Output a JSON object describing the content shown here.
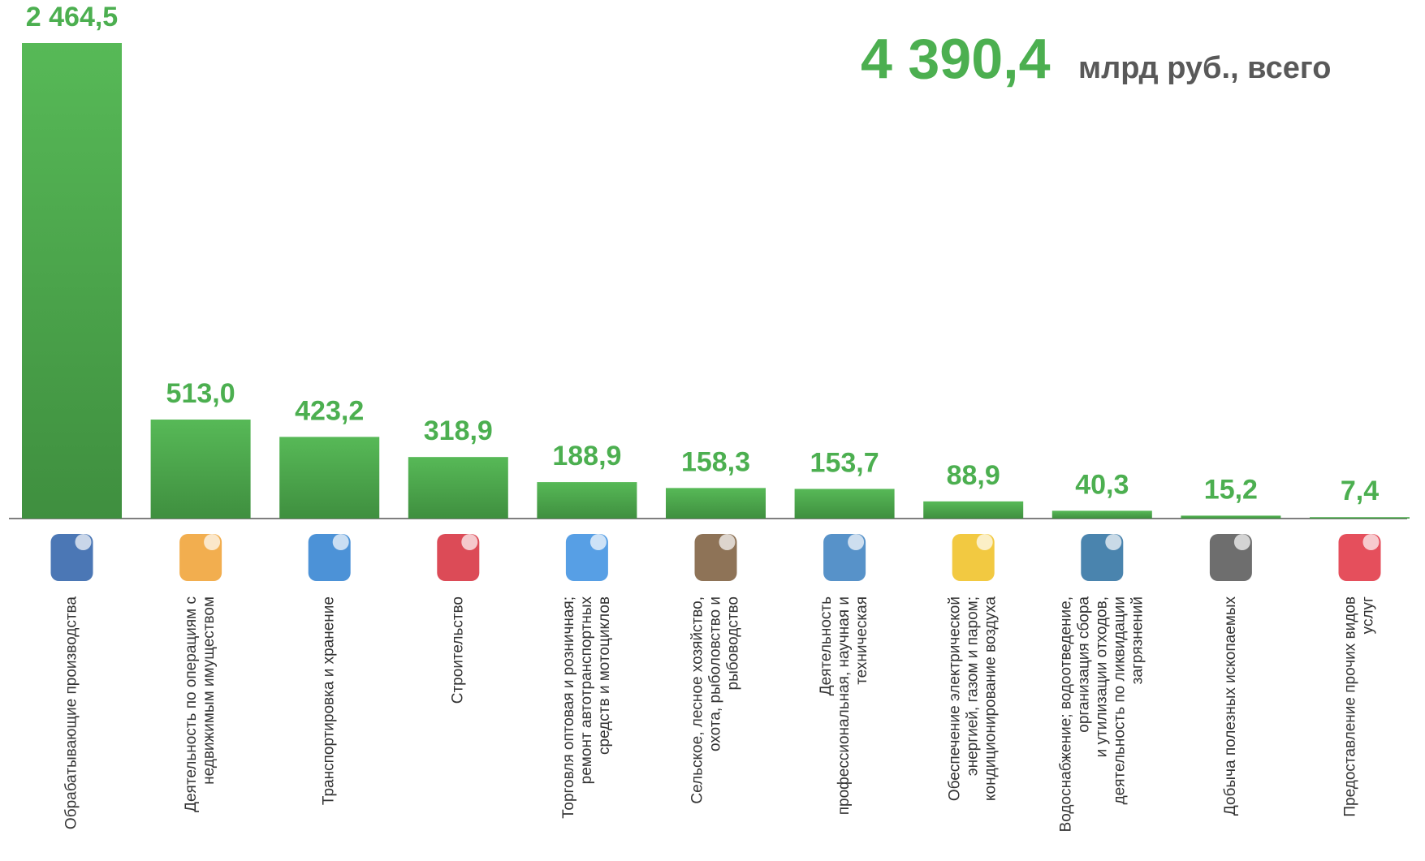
{
  "chart_data": {
    "type": "bar",
    "total": "4 390,4",
    "total_unit": "млрд руб., всего",
    "color": "#4caf50",
    "categories": [
      [
        "Обрабатывающие производства"
      ],
      [
        "Деятельность по операциям с",
        "недвижимым имуществом"
      ],
      [
        "Транспортировка и хранение"
      ],
      [
        "Строительство"
      ],
      [
        "Торговля оптовая и розничная;",
        "ремонт автотранспортных",
        "средств и мотоциклов"
      ],
      [
        "Сельское, лесное хозяйство,",
        "охота, рыболовство и",
        "рыбоводство"
      ],
      [
        "Деятельность",
        "профессиональная, научная и",
        "техническая"
      ],
      [
        "Обеспечение электрической",
        "энергией, газом и паром;",
        "кондиционирование воздуха"
      ],
      [
        "Водоснабжение; водоотведение,",
        "организация сбора",
        "и утилизации отходов,",
        "деятельность по ликвидации",
        "загрязнений"
      ],
      [
        "Добыча полезных ископаемых"
      ],
      [
        "Предоставление прочих видов",
        "услуг"
      ]
    ],
    "values": [
      2464.5,
      513.0,
      423.2,
      318.9,
      188.9,
      158.3,
      153.7,
      88.9,
      40.3,
      15.2,
      7.4
    ],
    "value_labels": [
      "2 464,5",
      "513,0",
      "423,2",
      "318,9",
      "188,9",
      "158,3",
      "153,7",
      "88,9",
      "40,3",
      "15,2",
      "7,4"
    ]
  }
}
